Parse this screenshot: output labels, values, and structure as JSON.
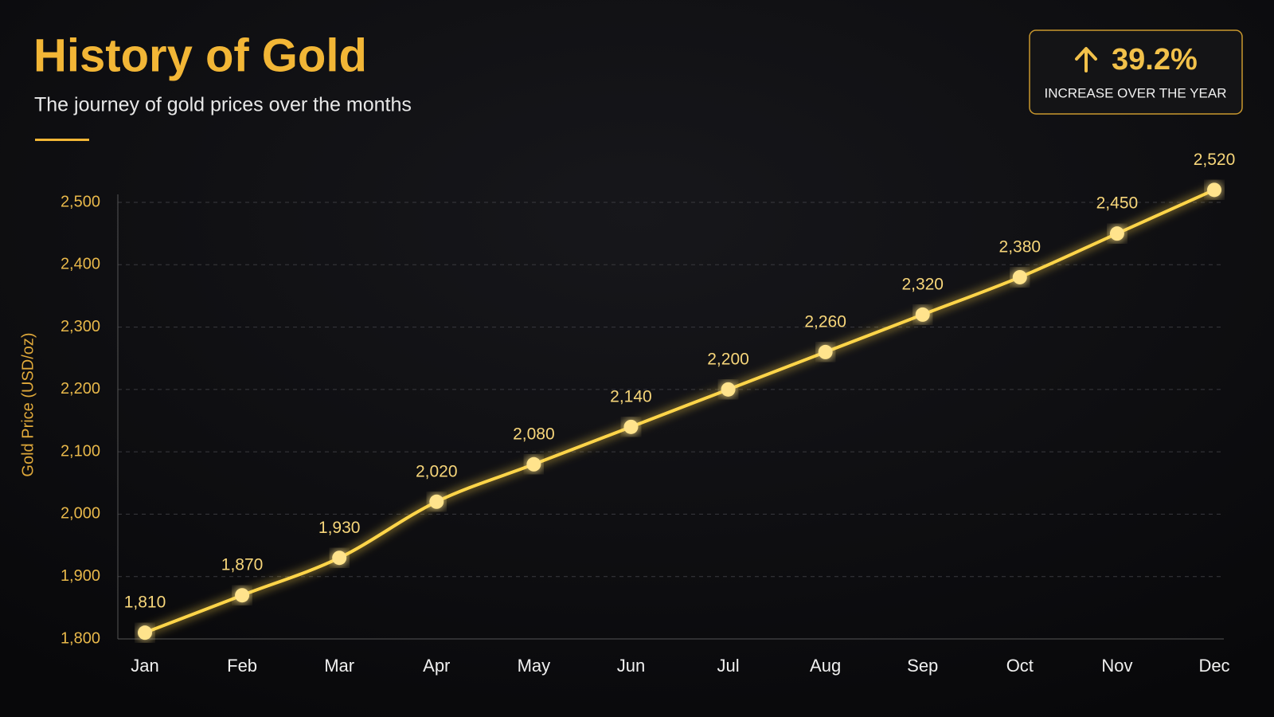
{
  "chart_data": {
    "type": "line",
    "title": "History of Gold",
    "subtitle": "The journey of gold prices over the months",
    "y_label": "Gold Price (USD/oz)",
    "badge": {
      "value": "39.2%",
      "label": "INCREASE OVER THE YEAR"
    },
    "categories": [
      "Jan",
      "Feb",
      "Mar",
      "Apr",
      "May",
      "Jun",
      "Jul",
      "Aug",
      "Sep",
      "Oct",
      "Nov",
      "Dec"
    ],
    "series": [
      {
        "name": "Gold Price",
        "color": "#ffd54a",
        "values": [
          1810,
          1870,
          1930,
          2020,
          2080,
          2140,
          2200,
          2260,
          2320,
          2380,
          2450,
          2520
        ],
        "value_labels": [
          "1,810",
          "1,870",
          "1,930",
          "2,020",
          "2,080",
          "2,140",
          "2,200",
          "2,260",
          "2,320",
          "2,380",
          "2,450",
          "2,520"
        ]
      }
    ],
    "ylim": [
      1800,
      2500
    ],
    "yticks": [
      {
        "value": 1800,
        "label": "1,800"
      },
      {
        "value": 1900,
        "label": "1,900"
      },
      {
        "value": 2000,
        "label": "2,000"
      },
      {
        "value": 2100,
        "label": "2,100"
      },
      {
        "value": 2200,
        "label": "2,200"
      },
      {
        "value": 2300,
        "label": "2,300"
      },
      {
        "value": 2400,
        "label": "2,400"
      },
      {
        "value": 2500,
        "label": "2,500"
      }
    ],
    "grid": true
  }
}
